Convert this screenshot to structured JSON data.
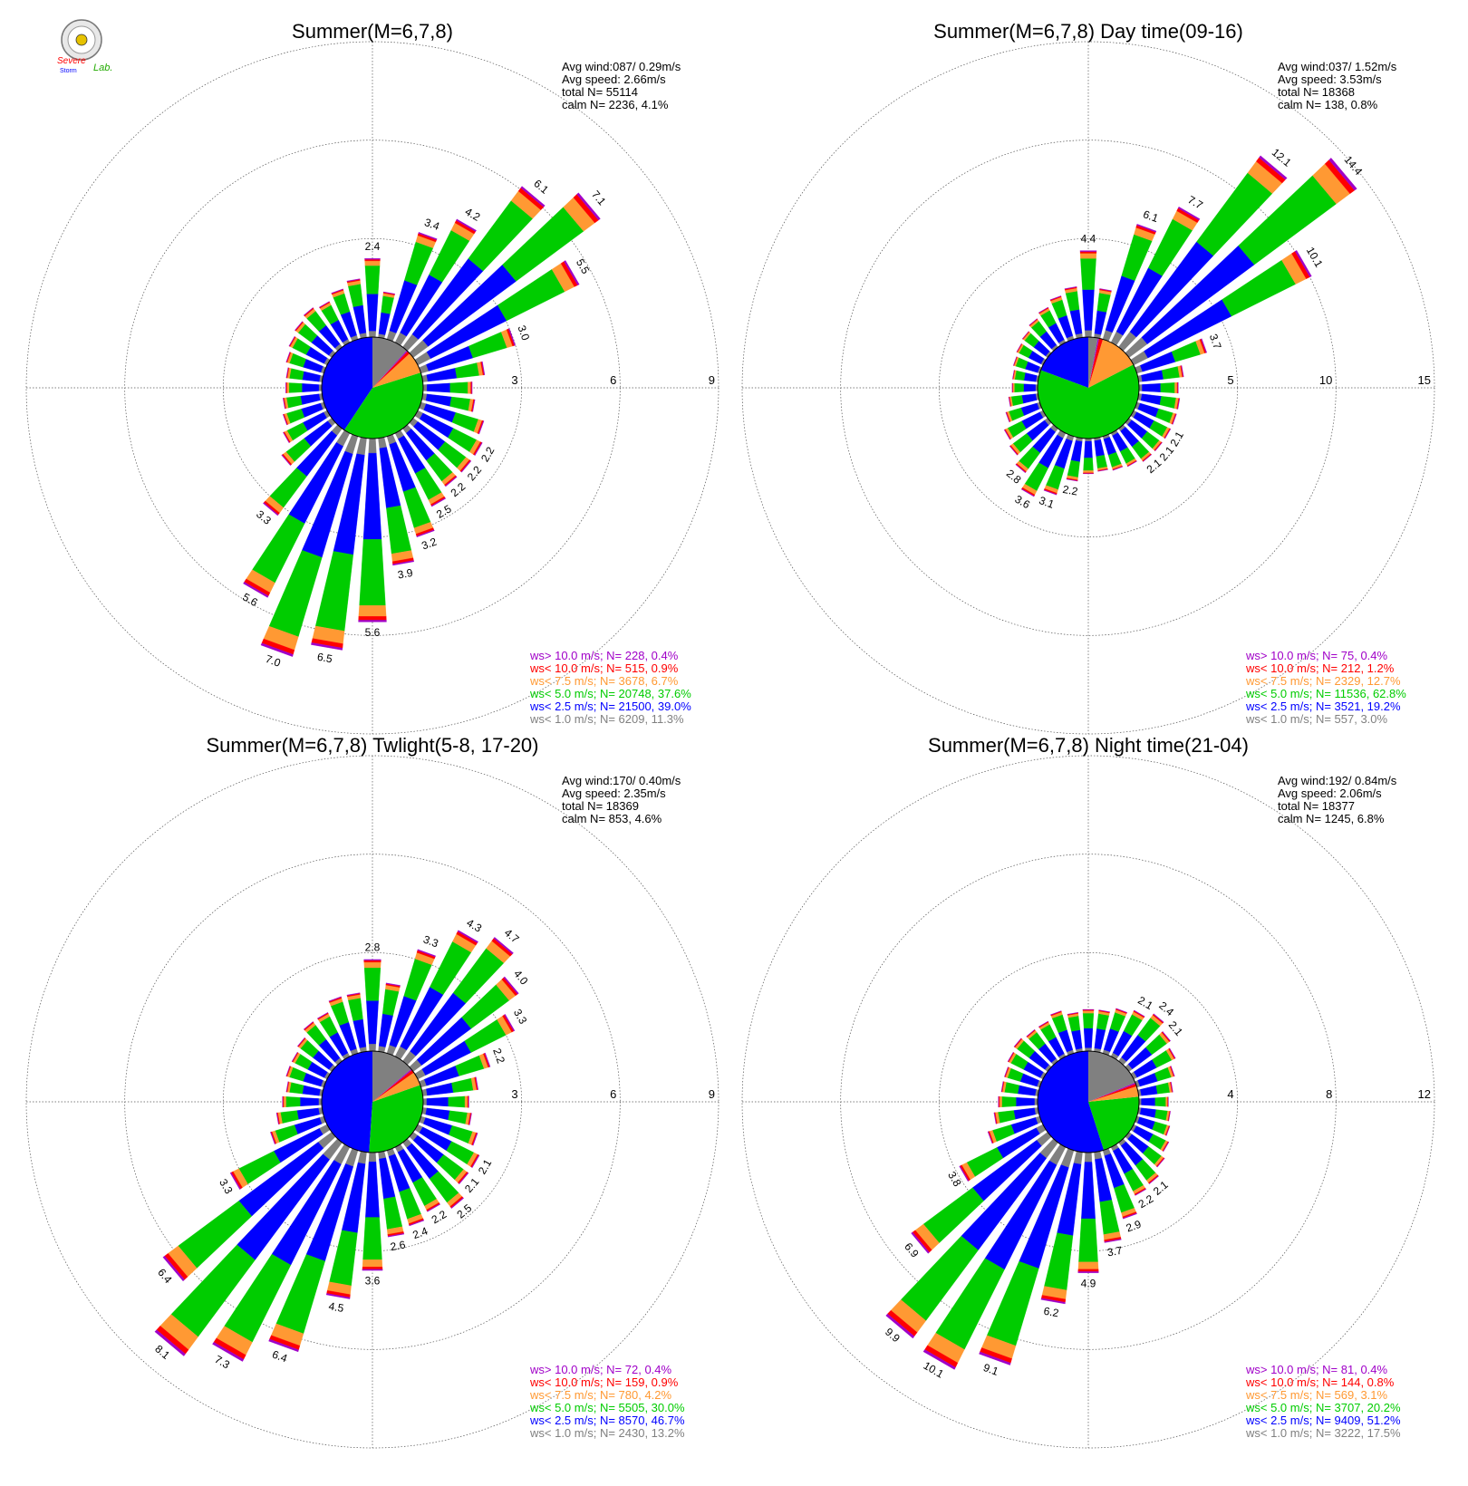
{
  "logo": {
    "line1": "Severe",
    "line2": "Storm",
    "line3": "Lab."
  },
  "colors": {
    "gt10": "#a000c8",
    "lt10": "#ff0000",
    "lt75": "#ff9933",
    "lt5": "#00cc00",
    "lt25": "#0000ff",
    "lt1": "#808080"
  },
  "chart_data": [
    {
      "type": "windrose",
      "title": "Summer(M=6,7,8)",
      "info": {
        "avg_wind": "Avg wind:087/ 0.29m/s",
        "avg_speed": "Avg speed: 2.66m/s",
        "total": "total N=      55114",
        "calm": "calm N=    2236,   4.1%"
      },
      "rings": [
        3,
        6,
        9
      ],
      "ring_labels": [
        "3",
        "6",
        "9"
      ],
      "legend": [
        "ws> 10.0 m/s; N=   228,  0.4%",
        "ws< 10.0 m/s; N=   515,  0.9%",
        "ws<  7.5 m/s; N=  3678,  6.7%",
        "ws<  5.0 m/s; N= 20748, 37.6%",
        "ws<  2.5 m/s; N= 21500, 39.0%",
        "ws<  1.0 m/s; N=  6209, 11.3%"
      ],
      "calm_pie": [
        0.39,
        0.376,
        0.067,
        0.009,
        0.004,
        0.113
      ],
      "bars": [
        [
          0,
          2.4,
          "2.4"
        ],
        [
          10,
          1.4,
          ""
        ],
        [
          20,
          3.4,
          "3.4"
        ],
        [
          30,
          4.2,
          "4.2"
        ],
        [
          40,
          6.1,
          "6.1"
        ],
        [
          50,
          7.1,
          "7.1"
        ],
        [
          60,
          5.5,
          "5.5"
        ],
        [
          70,
          3.0,
          "3.0"
        ],
        [
          80,
          1.9,
          ""
        ],
        [
          90,
          1.5,
          ""
        ],
        [
          100,
          1.6,
          ""
        ],
        [
          110,
          2.0,
          ""
        ],
        [
          120,
          2.2,
          "2.2"
        ],
        [
          130,
          2.2,
          "2.2"
        ],
        [
          140,
          2.2,
          "2.2"
        ],
        [
          150,
          2.5,
          "2.5"
        ],
        [
          160,
          3.2,
          "3.2"
        ],
        [
          170,
          3.9,
          "3.9"
        ],
        [
          180,
          5.6,
          "5.6"
        ],
        [
          190,
          6.5,
          "6.5"
        ],
        [
          200,
          7.0,
          "7.0"
        ],
        [
          210,
          5.6,
          "5.6"
        ],
        [
          220,
          3.3,
          "3.3"
        ],
        [
          230,
          1.9,
          ""
        ],
        [
          240,
          1.5,
          ""
        ],
        [
          250,
          1.3,
          ""
        ],
        [
          260,
          1.2,
          ""
        ],
        [
          270,
          1.1,
          ""
        ],
        [
          280,
          1.1,
          ""
        ],
        [
          290,
          1.2,
          ""
        ],
        [
          300,
          1.3,
          ""
        ],
        [
          310,
          1.4,
          ""
        ],
        [
          320,
          1.5,
          ""
        ],
        [
          330,
          1.4,
          ""
        ],
        [
          340,
          1.6,
          ""
        ],
        [
          350,
          1.8,
          ""
        ]
      ]
    },
    {
      "type": "windrose",
      "title": "Summer(M=6,7,8) Day time(09-16)",
      "info": {
        "avg_wind": "Avg wind:037/ 1.52m/s",
        "avg_speed": "Avg speed: 3.53m/s",
        "total": "total N=      18368",
        "calm": "calm N=     138,   0.8%"
      },
      "rings": [
        5,
        10,
        15
      ],
      "ring_labels": [
        "5",
        "10",
        "15"
      ],
      "legend": [
        "ws> 10.0 m/s; N=    75,  0.4%",
        "ws< 10.0 m/s; N=   212,  1.2%",
        "ws<  7.5 m/s; N=  2329, 12.7%",
        "ws<  5.0 m/s; N= 11536, 62.8%",
        "ws<  2.5 m/s; N=  3521, 19.2%",
        "ws<  1.0 m/s; N=   557,  3.0%"
      ],
      "calm_pie": [
        0.192,
        0.628,
        0.127,
        0.012,
        0.004,
        0.03
      ],
      "bars": [
        [
          0,
          4.4,
          "4.4"
        ],
        [
          10,
          2.5,
          ""
        ],
        [
          20,
          6.1,
          "6.1"
        ],
        [
          30,
          7.7,
          "7.7"
        ],
        [
          40,
          12.1,
          "12.1"
        ],
        [
          50,
          14.4,
          "14.4"
        ],
        [
          60,
          10.1,
          "10.1"
        ],
        [
          70,
          3.7,
          "3.7"
        ],
        [
          80,
          2.3,
          ""
        ],
        [
          90,
          2.0,
          ""
        ],
        [
          100,
          2.1,
          ""
        ],
        [
          110,
          2.1,
          ""
        ],
        [
          120,
          2.1,
          "2.1"
        ],
        [
          130,
          2.1,
          "2.1"
        ],
        [
          140,
          2.1,
          "2.1"
        ],
        [
          150,
          1.9,
          ""
        ],
        [
          160,
          1.8,
          ""
        ],
        [
          170,
          1.7,
          ""
        ],
        [
          180,
          1.8,
          ""
        ],
        [
          190,
          2.2,
          "2.2"
        ],
        [
          200,
          3.1,
          "3.1"
        ],
        [
          210,
          3.6,
          "3.6"
        ],
        [
          220,
          2.8,
          "2.8"
        ],
        [
          230,
          2.4,
          ""
        ],
        [
          240,
          2.2,
          ""
        ],
        [
          250,
          1.8,
          ""
        ],
        [
          260,
          1.5,
          ""
        ],
        [
          270,
          1.3,
          ""
        ],
        [
          280,
          1.3,
          ""
        ],
        [
          290,
          1.4,
          ""
        ],
        [
          300,
          1.5,
          ""
        ],
        [
          310,
          1.6,
          ""
        ],
        [
          320,
          1.8,
          ""
        ],
        [
          330,
          2.0,
          ""
        ],
        [
          340,
          2.3,
          ""
        ],
        [
          350,
          2.6,
          ""
        ]
      ]
    },
    {
      "type": "windrose",
      "title": "Summer(M=6,7,8) Twlight(5-8, 17-20)",
      "info": {
        "avg_wind": "Avg wind:170/ 0.40m/s",
        "avg_speed": "Avg speed: 2.35m/s",
        "total": "total N=      18369",
        "calm": "calm N=     853,   4.6%"
      },
      "rings": [
        3,
        6,
        9
      ],
      "ring_labels": [
        "3",
        "6",
        "9"
      ],
      "legend": [
        "ws> 10.0 m/s; N=    72,  0.4%",
        "ws< 10.0 m/s; N=   159,  0.9%",
        "ws<  7.5 m/s; N=   780,  4.2%",
        "ws<  5.0 m/s; N=  5505, 30.0%",
        "ws<  2.5 m/s; N=  8570, 46.7%",
        "ws<  1.0 m/s; N=  2430, 13.2%"
      ],
      "calm_pie": [
        0.467,
        0.3,
        0.042,
        0.009,
        0.004,
        0.132
      ],
      "bars": [
        [
          0,
          2.8,
          "2.8"
        ],
        [
          10,
          2.1,
          ""
        ],
        [
          20,
          3.3,
          "3.3"
        ],
        [
          30,
          4.3,
          "4.3"
        ],
        [
          40,
          4.7,
          "4.7"
        ],
        [
          50,
          4.0,
          "4.0"
        ],
        [
          60,
          3.3,
          "3.3"
        ],
        [
          70,
          2.2,
          "2.2"
        ],
        [
          80,
          1.7,
          ""
        ],
        [
          90,
          1.4,
          ""
        ],
        [
          100,
          1.5,
          ""
        ],
        [
          110,
          1.8,
          ""
        ],
        [
          120,
          2.1,
          "2.1"
        ],
        [
          130,
          2.1,
          "2.1"
        ],
        [
          140,
          2.5,
          "2.5"
        ],
        [
          150,
          2.2,
          "2.2"
        ],
        [
          160,
          2.4,
          "2.4"
        ],
        [
          170,
          2.6,
          "2.6"
        ],
        [
          180,
          3.6,
          "3.6"
        ],
        [
          190,
          4.5,
          "4.5"
        ],
        [
          200,
          6.4,
          "6.4"
        ],
        [
          210,
          7.3,
          "7.3"
        ],
        [
          220,
          8.1,
          "8.1"
        ],
        [
          230,
          6.4,
          "6.4"
        ],
        [
          240,
          3.3,
          "3.3"
        ],
        [
          250,
          1.7,
          ""
        ],
        [
          260,
          1.4,
          ""
        ],
        [
          270,
          1.2,
          ""
        ],
        [
          280,
          1.1,
          ""
        ],
        [
          290,
          1.2,
          ""
        ],
        [
          300,
          1.2,
          ""
        ],
        [
          310,
          1.3,
          ""
        ],
        [
          320,
          1.5,
          ""
        ],
        [
          330,
          1.5,
          ""
        ],
        [
          340,
          1.8,
          ""
        ],
        [
          350,
          1.8,
          ""
        ]
      ]
    },
    {
      "type": "windrose",
      "title": "Summer(M=6,7,8) Night time(21-04)",
      "info": {
        "avg_wind": "Avg wind:192/ 0.84m/s",
        "avg_speed": "Avg speed: 2.06m/s",
        "total": "total N=      18377",
        "calm": "calm N=    1245,   6.8%"
      },
      "rings": [
        4,
        8,
        12
      ],
      "ring_labels": [
        "4",
        "8",
        "12"
      ],
      "legend": [
        "ws> 10.0 m/s; N=    81,  0.4%",
        "ws< 10.0 m/s; N=   144,  0.8%",
        "ws<  7.5 m/s; N=   569,  3.1%",
        "ws<  5.0 m/s; N=  3707, 20.2%",
        "ws<  2.5 m/s; N=  9409, 51.2%",
        "ws<  1.0 m/s; N=  3222, 17.5%"
      ],
      "calm_pie": [
        0.512,
        0.202,
        0.031,
        0.008,
        0.004,
        0.175
      ],
      "bars": [
        [
          0,
          1.7,
          ""
        ],
        [
          10,
          1.7,
          ""
        ],
        [
          20,
          1.9,
          ""
        ],
        [
          30,
          2.1,
          "2.1"
        ],
        [
          40,
          2.4,
          "2.4"
        ],
        [
          50,
          2.1,
          "2.1"
        ],
        [
          60,
          1.9,
          ""
        ],
        [
          70,
          1.6,
          ""
        ],
        [
          80,
          1.4,
          ""
        ],
        [
          90,
          1.2,
          ""
        ],
        [
          100,
          1.3,
          ""
        ],
        [
          110,
          1.4,
          ""
        ],
        [
          120,
          1.6,
          ""
        ],
        [
          130,
          1.8,
          ""
        ],
        [
          140,
          2.1,
          "2.1"
        ],
        [
          150,
          2.2,
          "2.2"
        ],
        [
          160,
          2.9,
          "2.9"
        ],
        [
          170,
          3.7,
          "3.7"
        ],
        [
          180,
          4.9,
          "4.9"
        ],
        [
          190,
          6.2,
          "6.2"
        ],
        [
          200,
          9.1,
          "9.1"
        ],
        [
          210,
          10.1,
          "10.1"
        ],
        [
          220,
          9.9,
          "9.9"
        ],
        [
          230,
          6.9,
          "6.9"
        ],
        [
          240,
          3.8,
          "3.8"
        ],
        [
          250,
          2.2,
          ""
        ],
        [
          260,
          1.8,
          ""
        ],
        [
          270,
          1.6,
          ""
        ],
        [
          280,
          1.5,
          ""
        ],
        [
          290,
          1.5,
          ""
        ],
        [
          300,
          1.6,
          ""
        ],
        [
          310,
          1.7,
          ""
        ],
        [
          320,
          1.6,
          ""
        ],
        [
          330,
          1.6,
          ""
        ],
        [
          340,
          1.8,
          ""
        ],
        [
          350,
          1.6,
          ""
        ]
      ]
    }
  ]
}
